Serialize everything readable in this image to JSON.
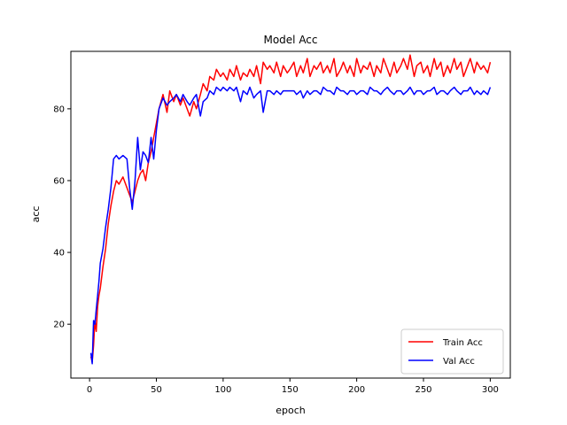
{
  "chart_data": {
    "type": "line",
    "title": "Model Acc",
    "xlabel": "epoch",
    "ylabel": "acc",
    "xlim": [
      -14,
      315
    ],
    "ylim": [
      5,
      96
    ],
    "xticks": [
      0,
      50,
      100,
      150,
      200,
      250,
      300
    ],
    "yticks": [
      20,
      40,
      60,
      80
    ],
    "legend": {
      "position": "lower-right"
    },
    "grid": false,
    "series": [
      {
        "name": "Train Acc",
        "color": "#ff0000",
        "x": [
          1,
          2,
          3,
          4,
          5,
          6,
          7,
          8,
          9,
          10,
          12,
          14,
          16,
          18,
          20,
          22,
          25,
          28,
          30,
          32,
          34,
          36,
          38,
          40,
          42,
          44,
          46,
          48,
          50,
          52,
          55,
          58,
          60,
          63,
          65,
          68,
          70,
          73,
          75,
          78,
          80,
          83,
          85,
          88,
          90,
          93,
          95,
          98,
          100,
          103,
          105,
          108,
          110,
          113,
          115,
          118,
          120,
          123,
          125,
          128,
          130,
          133,
          135,
          138,
          140,
          143,
          145,
          148,
          150,
          153,
          155,
          158,
          160,
          163,
          165,
          168,
          170,
          173,
          175,
          178,
          180,
          183,
          185,
          188,
          190,
          193,
          195,
          198,
          200,
          203,
          205,
          208,
          210,
          213,
          215,
          218,
          220,
          223,
          225,
          228,
          230,
          233,
          235,
          238,
          240,
          243,
          245,
          248,
          250,
          253,
          255,
          258,
          260,
          263,
          265,
          268,
          270,
          273,
          275,
          278,
          280,
          283,
          285,
          288,
          290,
          293,
          295,
          298,
          300
        ],
        "y": [
          11,
          9.5,
          14,
          21,
          18,
          25,
          28,
          30,
          33,
          36,
          41,
          48,
          53,
          57,
          60,
          59,
          61,
          58,
          56,
          54,
          57,
          60,
          62,
          63,
          60,
          65,
          68,
          72,
          76,
          80,
          84,
          79,
          85,
          82,
          84,
          81,
          83,
          80,
          78,
          82,
          80,
          84,
          87,
          85,
          89,
          88,
          91,
          89,
          90,
          88,
          91,
          89,
          92,
          88,
          90,
          89,
          91,
          89,
          92,
          87,
          93,
          91,
          92,
          90,
          93,
          89,
          92,
          90,
          91,
          93,
          89,
          92,
          90,
          94,
          89,
          92,
          91,
          93,
          90,
          92,
          90,
          94,
          89,
          91,
          93,
          90,
          92,
          89,
          94,
          90,
          92,
          91,
          93,
          89,
          92,
          90,
          94,
          91,
          89,
          93,
          90,
          92,
          94,
          91,
          95,
          89,
          92,
          93,
          90,
          92,
          89,
          94,
          91,
          93,
          89,
          92,
          90,
          94,
          91,
          93,
          89,
          92,
          94,
          90,
          93,
          91,
          92,
          90,
          93
        ]
      },
      {
        "name": "Val Acc",
        "color": "#0000ff",
        "x": [
          1,
          2,
          3,
          4,
          5,
          6,
          7,
          8,
          9,
          10,
          12,
          14,
          16,
          18,
          20,
          22,
          25,
          28,
          30,
          32,
          34,
          36,
          38,
          40,
          42,
          44,
          46,
          48,
          50,
          52,
          55,
          58,
          60,
          63,
          65,
          68,
          70,
          73,
          75,
          78,
          80,
          83,
          85,
          88,
          90,
          93,
          95,
          98,
          100,
          103,
          105,
          108,
          110,
          113,
          115,
          118,
          120,
          123,
          125,
          128,
          130,
          133,
          135,
          138,
          140,
          143,
          145,
          148,
          150,
          153,
          155,
          158,
          160,
          163,
          165,
          168,
          170,
          173,
          175,
          178,
          180,
          183,
          185,
          188,
          190,
          193,
          195,
          198,
          200,
          203,
          205,
          208,
          210,
          213,
          215,
          218,
          220,
          223,
          225,
          228,
          230,
          233,
          235,
          238,
          240,
          243,
          245,
          248,
          250,
          253,
          255,
          258,
          260,
          263,
          265,
          268,
          270,
          273,
          275,
          278,
          280,
          283,
          285,
          288,
          290,
          293,
          295,
          298,
          300
        ],
        "y": [
          12,
          9,
          21,
          20,
          24,
          28,
          32,
          37,
          39,
          41,
          47,
          52,
          58,
          66,
          67,
          66,
          67,
          66,
          58,
          52,
          60,
          72,
          63,
          68,
          67,
          65,
          72,
          66,
          74,
          80,
          83,
          81,
          82,
          83,
          84,
          82,
          84,
          82,
          81,
          83,
          84,
          78,
          82,
          83,
          85,
          84,
          86,
          85,
          86,
          85,
          86,
          85,
          86,
          82,
          85,
          84,
          86,
          83,
          84,
          85,
          79,
          85,
          85,
          84,
          85,
          84,
          85,
          85,
          85,
          85,
          84,
          85,
          83,
          85,
          84,
          85,
          85,
          84,
          86,
          85,
          85,
          84,
          86,
          85,
          85,
          84,
          85,
          85,
          84,
          85,
          85,
          84,
          86,
          85,
          85,
          84,
          85,
          86,
          85,
          84,
          85,
          85,
          84,
          85,
          86,
          84,
          85,
          85,
          84,
          85,
          85,
          86,
          84,
          85,
          85,
          84,
          85,
          86,
          85,
          84,
          85,
          85,
          86,
          84,
          85,
          84,
          85,
          84,
          86
        ]
      }
    ]
  }
}
